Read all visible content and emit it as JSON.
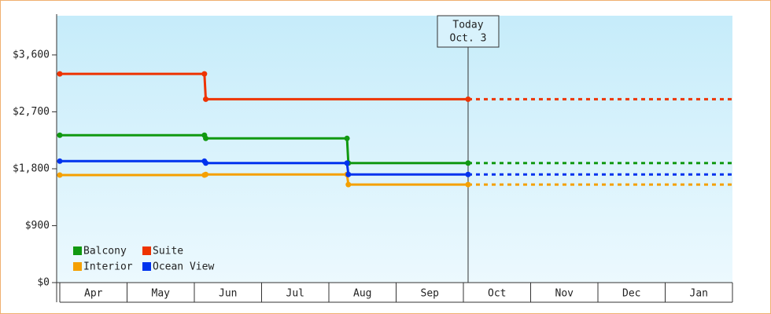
{
  "chart_data": {
    "type": "line",
    "xlim": [
      0,
      10
    ],
    "xticks": [
      {
        "value": 0.5,
        "label": "Apr"
      },
      {
        "value": 1.5,
        "label": "May"
      },
      {
        "value": 2.5,
        "label": "Jun"
      },
      {
        "value": 3.5,
        "label": "Jul"
      },
      {
        "value": 4.5,
        "label": "Aug"
      },
      {
        "value": 5.5,
        "label": "Sep"
      },
      {
        "value": 6.5,
        "label": "Oct"
      },
      {
        "value": 7.5,
        "label": "Nov"
      },
      {
        "value": 8.5,
        "label": "Dec"
      },
      {
        "value": 9.5,
        "label": "Jan"
      }
    ],
    "ylim": [
      0,
      4220
    ],
    "yticks": [
      {
        "value": 0,
        "label": "$0"
      },
      {
        "value": 900,
        "label": "$900"
      },
      {
        "value": 1800,
        "label": "$1,800"
      },
      {
        "value": 2700,
        "label": "$2,700"
      },
      {
        "value": 3600,
        "label": "$3,600"
      }
    ],
    "annotation": {
      "x": 6.07,
      "lines": [
        "Today",
        "Oct. 3"
      ]
    },
    "legend": "lower left",
    "series": [
      {
        "name": "Balcony",
        "color": "#119911",
        "x": [
          0,
          2.15,
          2.17,
          4.27,
          4.29,
          6.07
        ],
        "values": [
          2330,
          2330,
          2280,
          2280,
          1890,
          1890
        ]
      },
      {
        "name": "Suite",
        "color": "#ee3300",
        "x": [
          0,
          2.15,
          2.17,
          6.07
        ],
        "values": [
          3300,
          3300,
          2900,
          2900
        ]
      },
      {
        "name": "Interior",
        "color": "#f5a000",
        "x": [
          0,
          2.15,
          2.17,
          4.27,
          4.29,
          6.07
        ],
        "values": [
          1700,
          1700,
          1710,
          1710,
          1550,
          1550
        ]
      },
      {
        "name": "Ocean View",
        "color": "#0033ee",
        "x": [
          0,
          2.15,
          2.17,
          4.27,
          4.29,
          6.07
        ],
        "values": [
          1920,
          1920,
          1890,
          1890,
          1710,
          1710
        ]
      }
    ]
  }
}
